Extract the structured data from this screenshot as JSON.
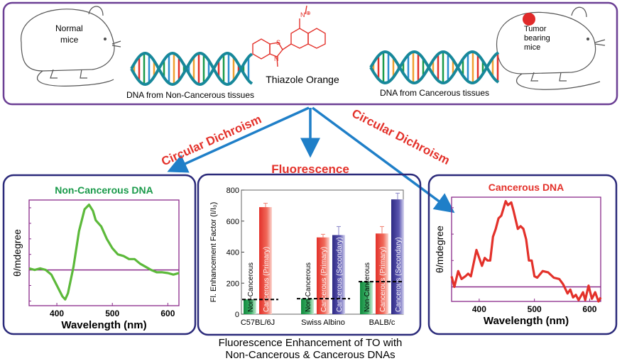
{
  "top_panel": {
    "normal_mice_label": [
      "Normal",
      "mice"
    ],
    "tumor_mice_label": [
      "Tumor",
      "bearing",
      "mice"
    ],
    "molecule_name": "Thiazole Orange",
    "molecule_atoms": {
      "s": "S",
      "n": "N",
      "n_plus": "N",
      "charge": "⊕"
    },
    "dna_left_label": "DNA from Non-Cancerous tissues",
    "dna_right_label": "DNA from Cancerous tissues"
  },
  "arrows": {
    "left_label": "Circular Dichroism",
    "center_label": "Fluorescence",
    "right_label": "Circular Dichroism",
    "color": "#1f7fc8"
  },
  "caption": [
    "Fluorescence Enhancement of TO with",
    "Non-Cancerous & Cancerous DNAs"
  ],
  "colors": {
    "frame_top": "#6b3f94",
    "frame_panel": "#2b2a7a",
    "plot_frame": "#8a2a8a",
    "green": "#1a9a4a",
    "red": "#e3312a",
    "navy": "#3a3590"
  },
  "chart_data": [
    {
      "type": "line",
      "title": "Non-Cancerous DNA",
      "xlabel": "Wavelength (nm)",
      "ylabel": "θ/mdegree",
      "xlim": [
        350,
        620
      ],
      "ylim": [
        -2.3,
        4.5
      ],
      "x_ticks": [
        400,
        500,
        600
      ],
      "baseline": 0,
      "color": "#5cb93a",
      "points": [
        [
          350,
          0.1
        ],
        [
          360,
          0
        ],
        [
          370,
          0.1
        ],
        [
          380,
          0
        ],
        [
          390,
          -0.3
        ],
        [
          400,
          -1.0
        ],
        [
          410,
          -1.7
        ],
        [
          415,
          -1.9
        ],
        [
          420,
          -1.5
        ],
        [
          430,
          0.2
        ],
        [
          440,
          2.5
        ],
        [
          450,
          3.9
        ],
        [
          458,
          4.2
        ],
        [
          465,
          3.8
        ],
        [
          470,
          3.2
        ],
        [
          480,
          2.8
        ],
        [
          490,
          2.0
        ],
        [
          500,
          1.4
        ],
        [
          510,
          1.0
        ],
        [
          520,
          0.9
        ],
        [
          530,
          0.7
        ],
        [
          540,
          0.7
        ],
        [
          550,
          0.4
        ],
        [
          560,
          0.2
        ],
        [
          570,
          0
        ],
        [
          580,
          -0.15
        ],
        [
          590,
          -0.15
        ],
        [
          600,
          -0.2
        ],
        [
          610,
          -0.3
        ],
        [
          620,
          -0.2
        ]
      ]
    },
    {
      "type": "bar",
      "ylabel": "Fl. Enhancement Factor (I/I₀)",
      "ylim": [
        0,
        800
      ],
      "y_ticks": [
        0,
        200,
        400,
        600,
        800
      ],
      "categories": [
        "C57BL/6J",
        "Swiss Albino",
        "BALB/c"
      ],
      "groups": [
        {
          "bars": [
            {
              "label": "Non-Cancerous",
              "value": 95,
              "error": 0,
              "kind": "green"
            },
            {
              "label": "Cancerous (Primary)",
              "value": 690,
              "error": 25,
              "kind": "red"
            }
          ],
          "reference": 95
        },
        {
          "bars": [
            {
              "label": "Non-Cancerous",
              "value": 100,
              "error": 0,
              "kind": "green"
            },
            {
              "label": "Cancerous (Primary)",
              "value": 495,
              "error": 20,
              "kind": "red"
            },
            {
              "label": "Cancerous (Secondary)",
              "value": 510,
              "error": 55,
              "kind": "navy"
            }
          ],
          "reference": 100
        },
        {
          "bars": [
            {
              "label": "Non-Cancerous",
              "value": 210,
              "error": 0,
              "kind": "green"
            },
            {
              "label": "Cancerous (Primary)",
              "value": 520,
              "error": 45,
              "kind": "red"
            },
            {
              "label": "Cancerous (Secondary)",
              "value": 740,
              "error": 40,
              "kind": "navy"
            }
          ],
          "reference": 210
        }
      ]
    },
    {
      "type": "line",
      "title": "Cancerous DNA",
      "xlabel": "Wavelength (nm)",
      "ylabel": "θ/mdegree",
      "xlim": [
        350,
        620
      ],
      "ylim": [
        -0.55,
        3.4
      ],
      "x_ticks": [
        400,
        500,
        600
      ],
      "baseline": 0,
      "color": "#e3312a",
      "points": [
        [
          350,
          0.4
        ],
        [
          355,
          0
        ],
        [
          362,
          0.6
        ],
        [
          368,
          0.3
        ],
        [
          375,
          0.4
        ],
        [
          380,
          0.5
        ],
        [
          385,
          0.4
        ],
        [
          395,
          1.4
        ],
        [
          400,
          1.1
        ],
        [
          405,
          0.8
        ],
        [
          410,
          1.1
        ],
        [
          415,
          1.0
        ],
        [
          420,
          1.0
        ],
        [
          425,
          1.9
        ],
        [
          430,
          2.2
        ],
        [
          435,
          2.6
        ],
        [
          440,
          2.7
        ],
        [
          448,
          3.25
        ],
        [
          452,
          3.1
        ],
        [
          458,
          3.2
        ],
        [
          462,
          2.9
        ],
        [
          470,
          2.2
        ],
        [
          475,
          2.3
        ],
        [
          480,
          2.2
        ],
        [
          485,
          1.8
        ],
        [
          490,
          1.0
        ],
        [
          495,
          1.0
        ],
        [
          500,
          0.4
        ],
        [
          505,
          0.35
        ],
        [
          515,
          0.6
        ],
        [
          525,
          0.55
        ],
        [
          535,
          0.35
        ],
        [
          545,
          0.3
        ],
        [
          552,
          0.1
        ],
        [
          560,
          -0.25
        ],
        [
          565,
          -0.1
        ],
        [
          570,
          -0.4
        ],
        [
          575,
          -0.3
        ],
        [
          580,
          -0.5
        ],
        [
          588,
          -0.2
        ],
        [
          592,
          -0.5
        ],
        [
          598,
          0.05
        ],
        [
          604,
          -0.45
        ],
        [
          610,
          -0.2
        ],
        [
          616,
          -0.55
        ],
        [
          620,
          -0.4
        ]
      ]
    }
  ]
}
